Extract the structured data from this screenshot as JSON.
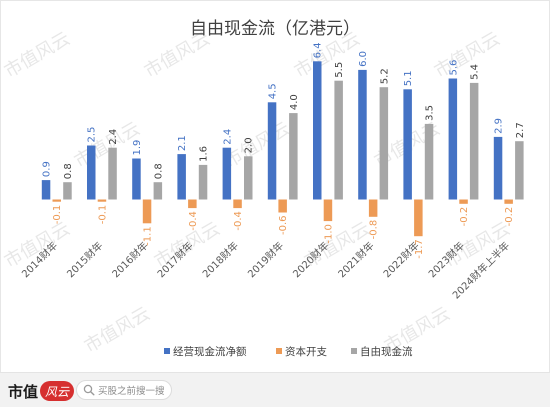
{
  "chart_data": {
    "type": "bar",
    "title": "自由现金流（亿港元）",
    "categories": [
      "2014财年",
      "2015财年",
      "2016财年",
      "2017财年",
      "2018财年",
      "2019财年",
      "2020财年",
      "2021财年",
      "2022财年",
      "2023财年",
      "2024财年上半年"
    ],
    "series": [
      {
        "name": "经营现金流净额",
        "color": "#4472c4",
        "label_color": "#4472c4",
        "values": [
          0.9,
          2.5,
          1.9,
          2.1,
          2.4,
          4.5,
          6.4,
          6.0,
          5.1,
          5.6,
          2.9
        ]
      },
      {
        "name": "资本开支",
        "color": "#ed9a55",
        "label_color": "#ed9a55",
        "values": [
          -0.1,
          -0.1,
          -1.1,
          -0.4,
          -0.4,
          -0.6,
          -1.0,
          -0.8,
          -1.7,
          -0.2,
          -0.2
        ]
      },
      {
        "name": "自由现金流",
        "color": "#a6a6a6",
        "label_color": "#404040",
        "values": [
          0.8,
          2.4,
          0.8,
          1.6,
          2.0,
          4.0,
          5.5,
          5.2,
          3.5,
          5.4,
          2.7
        ]
      }
    ],
    "ylim": [
      -2.0,
      7.0
    ],
    "grid": false,
    "legend_position": "bottom",
    "value_label_rotation": -90,
    "category_label_rotation": -45
  },
  "watermark": {
    "text": "市值风云"
  },
  "footer": {
    "brand_name": "市值",
    "brand_mark": "风云",
    "search_placeholder": "买股之前搜一搜",
    "search_icon": "search-icon"
  }
}
